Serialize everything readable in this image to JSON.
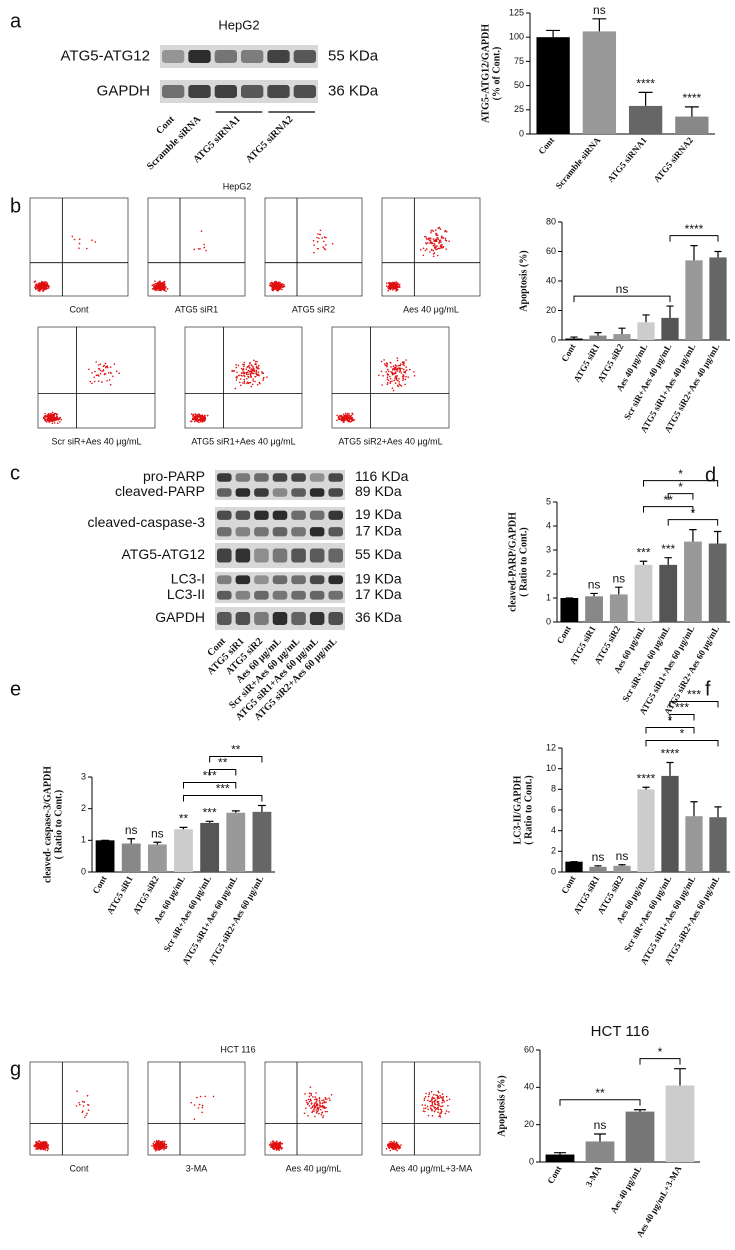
{
  "blots": [
    {
      "panel": "a",
      "title": "HepG2",
      "rows": [
        {
          "labels": [
            "ATG5-ATG12"
          ],
          "kda": [
            "55 KDa"
          ]
        },
        {
          "labels": [
            "GAPDH"
          ],
          "kda": [
            "36 KDa"
          ]
        }
      ],
      "lanes": [
        "Cont",
        "Scramble siRNA",
        "ATG5 siRNA1",
        "ATG5 siRNA2"
      ]
    },
    {
      "panel": "c",
      "rows": [
        {
          "labels": [
            "pro-PARP",
            "cleaved-PARP"
          ],
          "kda": [
            "116 KDa",
            "89 KDa"
          ]
        },
        {
          "labels": [
            "cleaved-caspase-3"
          ],
          "kda": [
            "19 KDa",
            "17 KDa"
          ]
        },
        {
          "labels": [
            "ATG5-ATG12"
          ],
          "kda": [
            "55 KDa"
          ]
        },
        {
          "labels": [
            "LC3-I",
            "LC3-II"
          ],
          "kda": [
            "19 KDa",
            "17 KDa"
          ]
        },
        {
          "labels": [
            "GAPDH"
          ],
          "kda": [
            "36 KDa"
          ]
        }
      ],
      "lanes": [
        "Cont",
        "ATG5 siR1",
        "ATG5 siR2",
        "Aes 60 μg/mL",
        "Scr siR+Aes 60 μg/mL",
        "ATG5 siR1+Aes 60 μg/mL",
        "ATG5 siR2+Aes 60 μg/mL"
      ]
    }
  ],
  "flow": [
    {
      "panel": "b",
      "title": "HepG2",
      "captions": [
        "Cont",
        "ATG5 siR1",
        "ATG5 siR2",
        "Aes 40 μg/mL",
        "Scr siR+Aes 40 μg/mL",
        "ATG5 siR1+Aes 40 μg/mL",
        "ATG5 siR2+Aes 40 μg/mL"
      ]
    },
    {
      "panel": "g",
      "title": "HCT 116",
      "captions": [
        "Cont",
        "3-MA",
        "Aes 40 μg/mL",
        "Aes 40 μg/mL+3-MA"
      ]
    }
  ],
  "chart_data": [
    {
      "type": "bar",
      "y_label": [
        "ATG5-ATG12/GAPDH",
        "(% of Cont.)"
      ],
      "categories": [
        "Cont",
        "Scramble siRNA",
        "ATG5 siRNA1",
        "ATG5 siRNA2"
      ],
      "values": [
        100,
        106,
        29,
        18
      ],
      "errors": [
        7,
        13,
        14,
        10
      ],
      "colors": [
        "#000000",
        "#999999",
        "#666666",
        "#888888"
      ],
      "annotations": [
        null,
        "ns",
        "****",
        "****"
      ],
      "ylim": [
        0,
        125
      ],
      "yticks": [
        0,
        25,
        50,
        75,
        100,
        125
      ]
    },
    {
      "type": "bar",
      "y_label": [
        "Apoptosis (%)"
      ],
      "categories": [
        "Cont",
        "ATG5 siR1",
        "ATG5 siR2",
        "Aes 40 μg/mL",
        "Scr siR+Aes 40 μg/mL",
        "ATG5 siR1+Aes 40 μg/mL",
        "ATG5 siR2+Aes 40 μg/mL"
      ],
      "values": [
        1,
        3,
        4,
        12,
        15,
        54,
        56
      ],
      "errors": [
        1,
        2,
        4,
        5,
        8,
        10,
        4
      ],
      "colors": [
        "#000000",
        "#888888",
        "#999999",
        "#cccccc",
        "#555555",
        "#999999",
        "#666666"
      ],
      "brackets": [
        {
          "from": 0,
          "to": 4,
          "label": "ns"
        },
        {
          "from": 4,
          "to": 6,
          "label": "****"
        }
      ],
      "ylim": [
        0,
        80
      ],
      "yticks": [
        0,
        20,
        40,
        60,
        80
      ]
    },
    {
      "type": "bar",
      "panel": "d",
      "y_label": [
        "cleaved-PARP/GAPDH",
        "( Ratio to Cont.)"
      ],
      "categories": [
        "Cont",
        "ATG5 siR1",
        "ATG5 siR2",
        "Aes 60 μg/mL",
        "Scr siR+Aes 60 μg/mL",
        "ATG5 siR1+Aes 60 μg/mL",
        "ATG5 siR2+Aes 60 μg/mL"
      ],
      "values": [
        1,
        1.07,
        1.15,
        2.38,
        2.38,
        3.35,
        3.27
      ],
      "errors": [
        0,
        0.12,
        0.3,
        0.15,
        0.3,
        0.5,
        0.5
      ],
      "colors": [
        "#000000",
        "#888888",
        "#999999",
        "#cccccc",
        "#555555",
        "#999999",
        "#666666"
      ],
      "annotations": [
        null,
        "ns",
        "ns",
        "***",
        "***",
        null,
        null
      ],
      "brackets": [
        {
          "from": 4,
          "to": 6,
          "label": "*"
        },
        {
          "from": 3,
          "to": 5,
          "label": "**"
        },
        {
          "from": 4,
          "to": 5,
          "label": "*"
        },
        {
          "from": 3,
          "to": 6,
          "label": "*"
        }
      ],
      "ylim": [
        0,
        5
      ],
      "yticks": [
        0,
        1,
        2,
        3,
        4,
        5
      ]
    },
    {
      "type": "bar",
      "panel": "e",
      "y_label": [
        "cleaved- caspase-3/GAPDH",
        "( Ratio to Cont.)"
      ],
      "categories": [
        "Cont",
        "ATG5 siR1",
        "ATG5 siR2",
        "Aes 60 μg/mL",
        "Scr siR+Aes 60 μg/mL",
        "ATG5 siR1+Aes 60 μg/mL",
        "ATG5 siR2+Aes 60 μg/mL"
      ],
      "values": [
        1,
        0.9,
        0.87,
        1.35,
        1.55,
        1.87,
        1.9
      ],
      "errors": [
        0,
        0.15,
        0.07,
        0.06,
        0.05,
        0.06,
        0.2
      ],
      "colors": [
        "#000000",
        "#888888",
        "#999999",
        "#cccccc",
        "#555555",
        "#999999",
        "#666666"
      ],
      "annotations": [
        null,
        "ns",
        "ns",
        "**",
        "***",
        null,
        null
      ],
      "brackets": [
        {
          "from": 3,
          "to": 6,
          "label": "***"
        },
        {
          "from": 3,
          "to": 5,
          "label": "***"
        },
        {
          "from": 4,
          "to": 5,
          "label": "**"
        },
        {
          "from": 4,
          "to": 6,
          "label": "**"
        }
      ],
      "ylim": [
        0,
        3
      ],
      "yticks": [
        0,
        1,
        2,
        3
      ]
    },
    {
      "type": "bar",
      "panel": "f",
      "y_label": [
        "LC3-II/GAPDH",
        "( Ratio to Cont.)"
      ],
      "categories": [
        "Cont",
        "ATG5 siR1",
        "ATG5 siR2",
        "Aes 60 μg/mL",
        "Scr siR+Aes 60 μg/mL",
        "ATG5 siR1+Aes 60 μg/mL",
        "ATG5 siR2+Aes 60 μg/mL"
      ],
      "values": [
        1,
        0.5,
        0.6,
        8,
        9.3,
        5.4,
        5.3
      ],
      "errors": [
        0,
        0.1,
        0.1,
        0.2,
        1.3,
        1.4,
        1
      ],
      "colors": [
        "#000000",
        "#888888",
        "#999999",
        "#cccccc",
        "#555555",
        "#999999",
        "#666666"
      ],
      "annotations": [
        null,
        "ns",
        "ns",
        "****",
        "****",
        null,
        null
      ],
      "brackets": [
        {
          "from": 3,
          "to": 6,
          "label": "*"
        },
        {
          "from": 3,
          "to": 5,
          "label": "*"
        },
        {
          "from": 4,
          "to": 5,
          "label": "***"
        },
        {
          "from": 4,
          "to": 6,
          "label": "***"
        }
      ],
      "ylim": [
        0,
        12
      ],
      "yticks": [
        0,
        2,
        4,
        6,
        8,
        10,
        12
      ]
    },
    {
      "type": "bar",
      "title": "HCT 116",
      "y_label": [
        "Apoptosis (%)"
      ],
      "categories": [
        "Cont",
        "3-MA",
        "Aes 40 μg/mL",
        "Aes 40 μg/mL+3-MA"
      ],
      "values": [
        4,
        11,
        27,
        41
      ],
      "errors": [
        1,
        4,
        1,
        9
      ],
      "colors": [
        "#000000",
        "#888888",
        "#777777",
        "#cccccc"
      ],
      "annotations": [
        null,
        "ns",
        null,
        null
      ],
      "brackets": [
        {
          "from": 0,
          "to": 2,
          "label": "**"
        },
        {
          "from": 2,
          "to": 3,
          "label": "*"
        }
      ],
      "ylim": [
        0,
        60
      ],
      "yticks": [
        0,
        20,
        40,
        60
      ]
    }
  ]
}
